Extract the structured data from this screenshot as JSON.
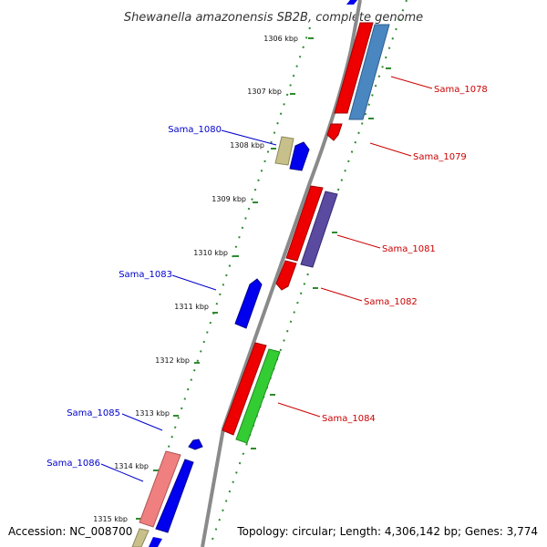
{
  "title": "Shewanella amazonensis SB2B, complete genome",
  "accession_text": "Accession: NC_008700",
  "summary_text": "Topology: circular; Length: 4,306,142 bp; Genes: 3,774",
  "colors": {
    "backbone": "#8a8a8a",
    "tick_dots": "#2e8b2e",
    "label_forward": "#cc0000",
    "label_reverse": "#0000cc"
  },
  "kbp_ticks": [
    "1306 kbp",
    "1307 kbp",
    "1308 kbp",
    "1309 kbp",
    "1310 kbp",
    "1311 kbp",
    "1312 kbp",
    "1313 kbp",
    "1314 kbp",
    "1315 kbp"
  ],
  "gene_labels": [
    {
      "name": "Sama_1078",
      "strand": "forward"
    },
    {
      "name": "Sama_1079",
      "strand": "forward"
    },
    {
      "name": "Sama_1080",
      "strand": "reverse"
    },
    {
      "name": "Sama_1081",
      "strand": "forward"
    },
    {
      "name": "Sama_1082",
      "strand": "forward"
    },
    {
      "name": "Sama_1083",
      "strand": "reverse"
    },
    {
      "name": "Sama_1084",
      "strand": "forward"
    },
    {
      "name": "Sama_1085",
      "strand": "reverse"
    },
    {
      "name": "Sama_1086",
      "strand": "reverse"
    }
  ]
}
